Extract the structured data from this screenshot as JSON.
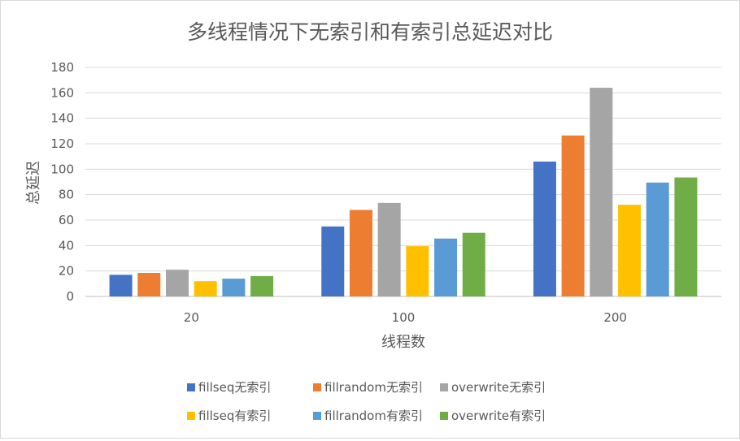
{
  "chart_data": {
    "type": "bar",
    "title": "多线程情况下无索引和有索引总延迟对比",
    "xlabel": "线程数",
    "ylabel": "总延迟",
    "categories": [
      "20",
      "100",
      "200"
    ],
    "ylim": [
      0,
      180
    ],
    "yticks": [
      0,
      20,
      40,
      60,
      80,
      100,
      120,
      140,
      160,
      180
    ],
    "grid": true,
    "legend_position": "bottom",
    "series": [
      {
        "name": "fillseq无索引",
        "color": "#4472C4",
        "values": [
          17,
          55,
          106
        ]
      },
      {
        "name": "fillrandom无索引",
        "color": "#ED7D31",
        "values": [
          18.5,
          68,
          126.5
        ]
      },
      {
        "name": "overwrite无索引",
        "color": "#A5A5A5",
        "values": [
          21,
          73.5,
          164
        ]
      },
      {
        "name": "fillseq有索引",
        "color": "#FFC000",
        "values": [
          12,
          39.5,
          72
        ]
      },
      {
        "name": "fillrandom有索引",
        "color": "#5B9BD5",
        "values": [
          14,
          45.5,
          89.5
        ]
      },
      {
        "name": "overwrite有索引",
        "color": "#70AD47",
        "values": [
          16,
          50,
          93.5
        ]
      }
    ]
  }
}
